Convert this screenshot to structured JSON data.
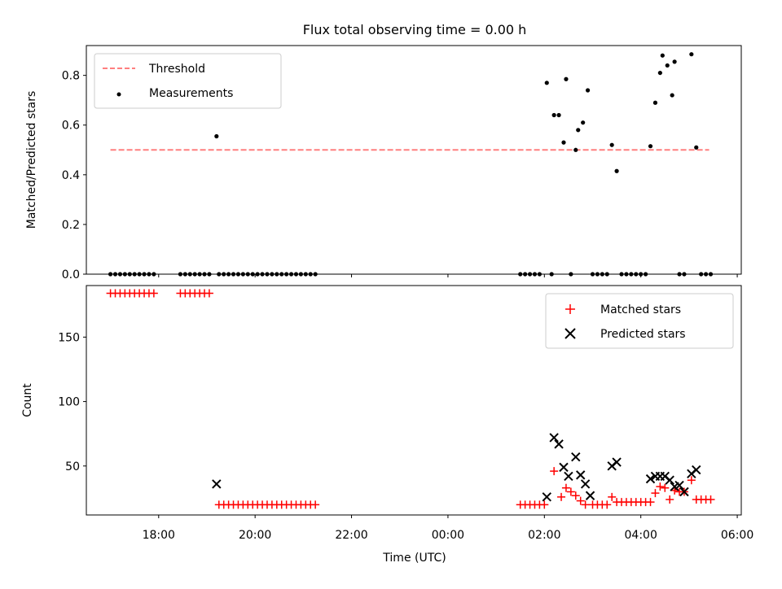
{
  "title": "Flux total observing time = 0.00 h",
  "colors": {
    "threshold": "#ff7f7f",
    "measurements": "#000000",
    "matched": "#ff0000",
    "predicted": "#000000"
  },
  "chart_data": [
    {
      "type": "scatter",
      "ylabel": "Matched/Predicted stars",
      "xlabel": "",
      "x_axis": "time",
      "xlim": [
        "16:30",
        "30:05"
      ],
      "ylim": [
        0,
        0.92
      ],
      "yticks": [
        0.0,
        0.2,
        0.4,
        0.6,
        0.8
      ],
      "ytick_labels": [
        "0.0",
        "0.2",
        "0.4",
        "0.6",
        "0.8"
      ],
      "xticks": [
        "18:00",
        "20:00",
        "22:00",
        "24:00",
        "26:00",
        "28:00",
        "30:00"
      ],
      "grid": false,
      "legend_position": "top-left",
      "legend": [
        "Threshold",
        "Measurements"
      ],
      "threshold": {
        "name": "Threshold",
        "y": 0.5,
        "x_from": "17:00",
        "x_to": "29:25",
        "style": "dashed"
      },
      "series": [
        {
          "name": "Measurements",
          "points": [
            [
              "17:00",
              0
            ],
            [
              "17:06",
              0
            ],
            [
              "17:12",
              0
            ],
            [
              "17:18",
              0
            ],
            [
              "17:24",
              0
            ],
            [
              "17:30",
              0
            ],
            [
              "17:36",
              0
            ],
            [
              "17:42",
              0
            ],
            [
              "17:48",
              0
            ],
            [
              "17:54",
              0
            ],
            [
              "18:27",
              0
            ],
            [
              "18:33",
              0
            ],
            [
              "18:39",
              0
            ],
            [
              "18:45",
              0
            ],
            [
              "18:51",
              0
            ],
            [
              "18:57",
              0
            ],
            [
              "19:03",
              0
            ],
            [
              "19:12",
              0.555
            ],
            [
              "19:15",
              0
            ],
            [
              "19:21",
              0
            ],
            [
              "19:27",
              0
            ],
            [
              "19:33",
              0
            ],
            [
              "19:39",
              0
            ],
            [
              "19:45",
              0
            ],
            [
              "19:51",
              0
            ],
            [
              "19:57",
              0
            ],
            [
              "20:03",
              0
            ],
            [
              "20:09",
              0
            ],
            [
              "20:15",
              0
            ],
            [
              "20:21",
              0
            ],
            [
              "20:27",
              0
            ],
            [
              "20:33",
              0
            ],
            [
              "20:39",
              0
            ],
            [
              "20:45",
              0
            ],
            [
              "20:51",
              0
            ],
            [
              "20:57",
              0
            ],
            [
              "21:03",
              0
            ],
            [
              "21:09",
              0
            ],
            [
              "21:15",
              0
            ],
            [
              "25:30",
              0
            ],
            [
              "25:36",
              0
            ],
            [
              "25:42",
              0
            ],
            [
              "25:48",
              0
            ],
            [
              "25:54",
              0
            ],
            [
              "26:03",
              0.77
            ],
            [
              "26:09",
              0
            ],
            [
              "26:12",
              0.64
            ],
            [
              "26:18",
              0.64
            ],
            [
              "26:24",
              0.53
            ],
            [
              "26:27",
              0.785
            ],
            [
              "26:33",
              0
            ],
            [
              "26:39",
              0.5
            ],
            [
              "26:42",
              0.58
            ],
            [
              "26:48",
              0.61
            ],
            [
              "26:54",
              0.74
            ],
            [
              "27:00",
              0
            ],
            [
              "27:06",
              0
            ],
            [
              "27:12",
              0
            ],
            [
              "27:18",
              0
            ],
            [
              "27:24",
              0.52
            ],
            [
              "27:30",
              0.415
            ],
            [
              "27:36",
              0
            ],
            [
              "27:42",
              0
            ],
            [
              "27:48",
              0
            ],
            [
              "27:54",
              0
            ],
            [
              "28:00",
              0
            ],
            [
              "28:06",
              0
            ],
            [
              "28:12",
              0.515
            ],
            [
              "28:18",
              0.69
            ],
            [
              "28:24",
              0.81
            ],
            [
              "28:27",
              0.88
            ],
            [
              "28:33",
              0.84
            ],
            [
              "28:39",
              0.72
            ],
            [
              "28:42",
              0.855
            ],
            [
              "28:48",
              0
            ],
            [
              "28:54",
              0
            ],
            [
              "29:03",
              0.885
            ],
            [
              "29:09",
              0.51
            ],
            [
              "29:15",
              0
            ],
            [
              "29:21",
              0
            ],
            [
              "29:27",
              0
            ]
          ]
        }
      ]
    },
    {
      "type": "scatter",
      "ylabel": "Count",
      "xlabel": "Time (UTC)",
      "x_axis": "time",
      "xlim": [
        "16:30",
        "30:05"
      ],
      "ylim": [
        12,
        190
      ],
      "yticks": [
        50,
        100,
        150
      ],
      "ytick_labels": [
        "50",
        "100",
        "150"
      ],
      "xticks": [
        "18:00",
        "20:00",
        "22:00",
        "24:00",
        "26:00",
        "28:00",
        "30:00"
      ],
      "xtick_labels": [
        "18:00",
        "20:00",
        "22:00",
        "00:00",
        "02:00",
        "04:00",
        "06:00"
      ],
      "grid": false,
      "legend_position": "top-right",
      "legend": [
        "Matched stars",
        "Predicted stars"
      ],
      "series": [
        {
          "name": "Matched stars",
          "marker": "plus",
          "points": [
            [
              "17:00",
              184
            ],
            [
              "17:06",
              184
            ],
            [
              "17:12",
              184
            ],
            [
              "17:18",
              184
            ],
            [
              "17:24",
              184
            ],
            [
              "17:30",
              184
            ],
            [
              "17:36",
              184
            ],
            [
              "17:42",
              184
            ],
            [
              "17:48",
              184
            ],
            [
              "17:54",
              184
            ],
            [
              "18:27",
              184
            ],
            [
              "18:33",
              184
            ],
            [
              "18:39",
              184
            ],
            [
              "18:45",
              184
            ],
            [
              "18:51",
              184
            ],
            [
              "18:57",
              184
            ],
            [
              "19:03",
              184
            ],
            [
              "19:15",
              20
            ],
            [
              "19:21",
              20
            ],
            [
              "19:27",
              20
            ],
            [
              "19:33",
              20
            ],
            [
              "19:39",
              20
            ],
            [
              "19:45",
              20
            ],
            [
              "19:51",
              20
            ],
            [
              "19:57",
              20
            ],
            [
              "20:03",
              20
            ],
            [
              "20:09",
              20
            ],
            [
              "20:15",
              20
            ],
            [
              "20:21",
              20
            ],
            [
              "20:27",
              20
            ],
            [
              "20:33",
              20
            ],
            [
              "20:39",
              20
            ],
            [
              "20:45",
              20
            ],
            [
              "20:51",
              20
            ],
            [
              "20:57",
              20
            ],
            [
              "21:03",
              20
            ],
            [
              "21:09",
              20
            ],
            [
              "21:15",
              20
            ],
            [
              "25:30",
              20
            ],
            [
              "25:36",
              20
            ],
            [
              "25:42",
              20
            ],
            [
              "25:48",
              20
            ],
            [
              "25:54",
              20
            ],
            [
              "26:00",
              20
            ],
            [
              "26:12",
              46
            ],
            [
              "26:21",
              26
            ],
            [
              "26:27",
              33
            ],
            [
              "26:33",
              30
            ],
            [
              "26:39",
              27
            ],
            [
              "26:45",
              23
            ],
            [
              "26:51",
              20
            ],
            [
              "27:00",
              20
            ],
            [
              "27:06",
              20
            ],
            [
              "27:12",
              20
            ],
            [
              "27:18",
              20
            ],
            [
              "27:24",
              26
            ],
            [
              "27:30",
              22
            ],
            [
              "27:36",
              22
            ],
            [
              "27:42",
              22
            ],
            [
              "27:48",
              22
            ],
            [
              "27:54",
              22
            ],
            [
              "28:00",
              22
            ],
            [
              "28:06",
              22
            ],
            [
              "28:12",
              22
            ],
            [
              "28:18",
              29
            ],
            [
              "28:24",
              34
            ],
            [
              "28:30",
              33
            ],
            [
              "28:36",
              24
            ],
            [
              "28:42",
              31
            ],
            [
              "28:48",
              30
            ],
            [
              "28:54",
              30
            ],
            [
              "29:03",
              39
            ],
            [
              "29:09",
              24
            ],
            [
              "29:15",
              24
            ],
            [
              "29:21",
              24
            ],
            [
              "29:27",
              24
            ]
          ]
        },
        {
          "name": "Predicted stars",
          "marker": "x",
          "points": [
            [
              "19:12",
              36
            ],
            [
              "26:03",
              26
            ],
            [
              "26:12",
              72
            ],
            [
              "26:18",
              67
            ],
            [
              "26:24",
              49
            ],
            [
              "26:30",
              42
            ],
            [
              "26:39",
              57
            ],
            [
              "26:45",
              43
            ],
            [
              "26:51",
              36
            ],
            [
              "26:57",
              27
            ],
            [
              "27:24",
              50
            ],
            [
              "27:30",
              53
            ],
            [
              "28:12",
              40
            ],
            [
              "28:18",
              42
            ],
            [
              "28:24",
              42
            ],
            [
              "28:30",
              42
            ],
            [
              "28:36",
              39
            ],
            [
              "28:42",
              34
            ],
            [
              "28:48",
              35
            ],
            [
              "28:54",
              30
            ],
            [
              "29:03",
              44
            ],
            [
              "29:09",
              47
            ]
          ]
        }
      ]
    }
  ]
}
